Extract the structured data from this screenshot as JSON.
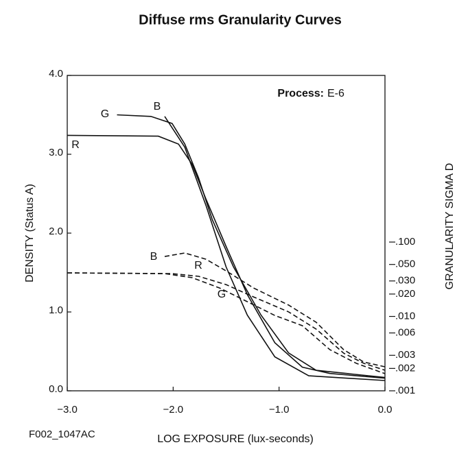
{
  "chart_data": {
    "type": "line",
    "title": "Diffuse rms Granularity Curves",
    "annotation": {
      "label": "Process:",
      "value": "E-6"
    },
    "figure_code": "F002_1047AC",
    "xlabel": "LOG EXPOSURE (lux-seconds)",
    "ylabel": "DENSITY (Status A)",
    "y2label": "GRANULARITY SIGMA D",
    "xlim": [
      -3,
      0
    ],
    "xticks": [
      {
        "value": -3,
        "label": "−3.0"
      },
      {
        "value": -2,
        "label": "−2.0"
      },
      {
        "value": -1,
        "label": "−1.0"
      },
      {
        "value": 0,
        "label": "0.0"
      }
    ],
    "ylim": [
      0,
      4
    ],
    "yticks": [
      {
        "value": 0,
        "label": "0.0"
      },
      {
        "value": 1,
        "label": "1.0"
      },
      {
        "value": 2,
        "label": "2.0"
      },
      {
        "value": 3,
        "label": "3.0"
      },
      {
        "value": 4,
        "label": "4.0"
      }
    ],
    "y2lim": [
      0.001,
      17.4
    ],
    "y2scale": "log",
    "y2ticks": [
      {
        "value": 0.1,
        "label": ".100"
      },
      {
        "value": 0.05,
        "label": ".050"
      },
      {
        "value": 0.03,
        "label": ".030"
      },
      {
        "value": 0.02,
        "label": ".020"
      },
      {
        "value": 0.01,
        "label": ".010"
      },
      {
        "value": 0.006,
        "label": ".006"
      },
      {
        "value": 0.003,
        "label": ".003"
      },
      {
        "value": 0.002,
        "label": ".002"
      },
      {
        "value": 0.001,
        "label": ".001"
      }
    ],
    "series": [
      {
        "name": "G",
        "color": "#111111",
        "line_style": "solid",
        "x": [
          -2.53,
          -2.21,
          -2.01,
          -1.89,
          -1.76,
          -1.63,
          -1.43,
          -1.17,
          -0.91,
          -0.65,
          0
        ],
        "values": [
          3.5,
          3.48,
          3.39,
          3.13,
          2.7,
          2.17,
          1.57,
          0.96,
          0.48,
          0.26,
          0.17
        ]
      },
      {
        "name": "B",
        "color": "#111111",
        "line_style": "solid",
        "x": [
          -2.08,
          -1.89,
          -1.69,
          -1.5,
          -1.3,
          -1.04,
          -0.72,
          0
        ],
        "values": [
          3.48,
          3.09,
          2.35,
          1.57,
          0.96,
          0.43,
          0.19,
          0.13
        ]
      },
      {
        "name": "R",
        "color": "#111111",
        "line_style": "solid",
        "x": [
          -3,
          -2.14,
          -1.95,
          -1.82,
          -1.69,
          -1.5,
          -1.3,
          -1.04,
          -0.78,
          -0.52,
          0
        ],
        "values": [
          3.24,
          3.23,
          3.13,
          2.87,
          2.43,
          1.83,
          1.22,
          0.61,
          0.3,
          0.22,
          0.16
        ]
      },
      {
        "name": "B",
        "color": "#111111",
        "line_style": "dashed",
        "axis": "y2",
        "x": [
          -2.08,
          -1.89,
          -1.69,
          -1.5,
          -1.24,
          -0.91,
          -0.65,
          -0.39,
          -0.2,
          0
        ],
        "values": [
          0.064,
          0.0712,
          0.0588,
          0.041,
          0.0241,
          0.0142,
          0.00835,
          0.00357,
          0.00244,
          0.0021
        ]
      },
      {
        "name": "R",
        "color": "#111111",
        "line_style": "dashed",
        "axis": "y2",
        "x": [
          -3,
          -2.01,
          -1.76,
          -1.5,
          -1.24,
          -0.91,
          -0.65,
          -0.39,
          -0.2,
          0
        ],
        "values": [
          0.0385,
          0.0376,
          0.0346,
          0.0268,
          0.0183,
          0.0115,
          0.00675,
          0.00321,
          0.00234,
          0.00189
        ]
      },
      {
        "name": "G",
        "color": "#111111",
        "line_style": "dashed",
        "axis": "y2",
        "x": [
          -3,
          -2.08,
          -1.82,
          -1.56,
          -1.3,
          -1.04,
          -0.78,
          -0.52,
          -0.27,
          0
        ],
        "values": [
          0.0385,
          0.0376,
          0.0332,
          0.0241,
          0.0158,
          0.0103,
          0.00751,
          0.00357,
          0.00234,
          0.0017
        ]
      }
    ]
  }
}
